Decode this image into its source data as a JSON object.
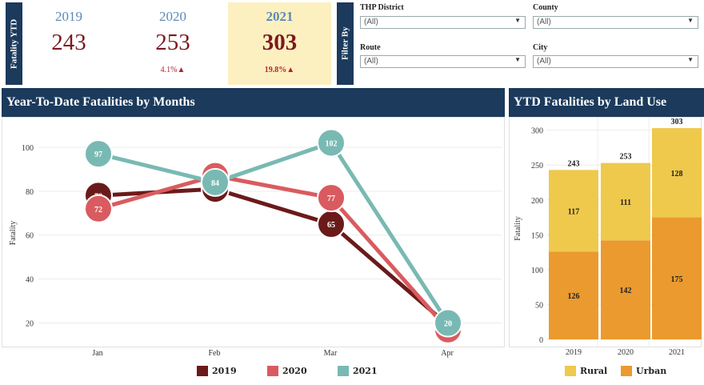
{
  "kpi": {
    "side_label": "Fatality YTD",
    "years": [
      {
        "year": "2019",
        "value": "243",
        "pct": ""
      },
      {
        "year": "2020",
        "value": "253",
        "pct": "4.1%▲"
      },
      {
        "year": "2021",
        "value": "303",
        "pct": "19.8%▲"
      }
    ]
  },
  "filters": {
    "side_label": "Filter By",
    "items": [
      {
        "label": "THP District",
        "value": "(All)"
      },
      {
        "label": "County",
        "value": "(All)"
      },
      {
        "label": "Route",
        "value": "(All)"
      },
      {
        "label": "City",
        "value": "(All)"
      }
    ]
  },
  "colors": {
    "navy": "#1b3a5c",
    "y2019": "#6b1a1a",
    "y2020": "#d95b5f",
    "y2021": "#79b9b3",
    "rural": "#efc94c",
    "urban": "#ea9a2e",
    "highlight": "#fdf0c0"
  },
  "chart_data": [
    {
      "type": "line",
      "title": "Year-To-Date Fatalities by Months",
      "xlabel": "",
      "ylabel": "Fatality",
      "categories": [
        "Jan",
        "Feb",
        "Mar",
        "Apr"
      ],
      "yticks": [
        "20",
        "40",
        "60",
        "80",
        "100"
      ],
      "ylim": [
        10,
        112
      ],
      "series": [
        {
          "name": "2019",
          "values": [
            78,
            81,
            65,
            19
          ]
        },
        {
          "name": "2020",
          "values": [
            72,
            87,
            77,
            17
          ]
        },
        {
          "name": "2021",
          "values": [
            97,
            84,
            102,
            20
          ]
        }
      ],
      "legend": "bottom"
    },
    {
      "type": "bar",
      "title": "YTD Fatalities by Land Use",
      "xlabel": "",
      "ylabel": "Fatality",
      "categories": [
        "2019",
        "2020",
        "2021"
      ],
      "yticks": [
        "0",
        "50",
        "100",
        "150",
        "200",
        "250",
        "300"
      ],
      "ylim": [
        0,
        318
      ],
      "stacked": true,
      "series": [
        {
          "name": "Urban",
          "values": [
            126,
            142,
            175
          ]
        },
        {
          "name": "Rural",
          "values": [
            117,
            111,
            128
          ]
        }
      ],
      "totals": [
        243,
        253,
        303
      ],
      "legend": "bottom"
    }
  ]
}
